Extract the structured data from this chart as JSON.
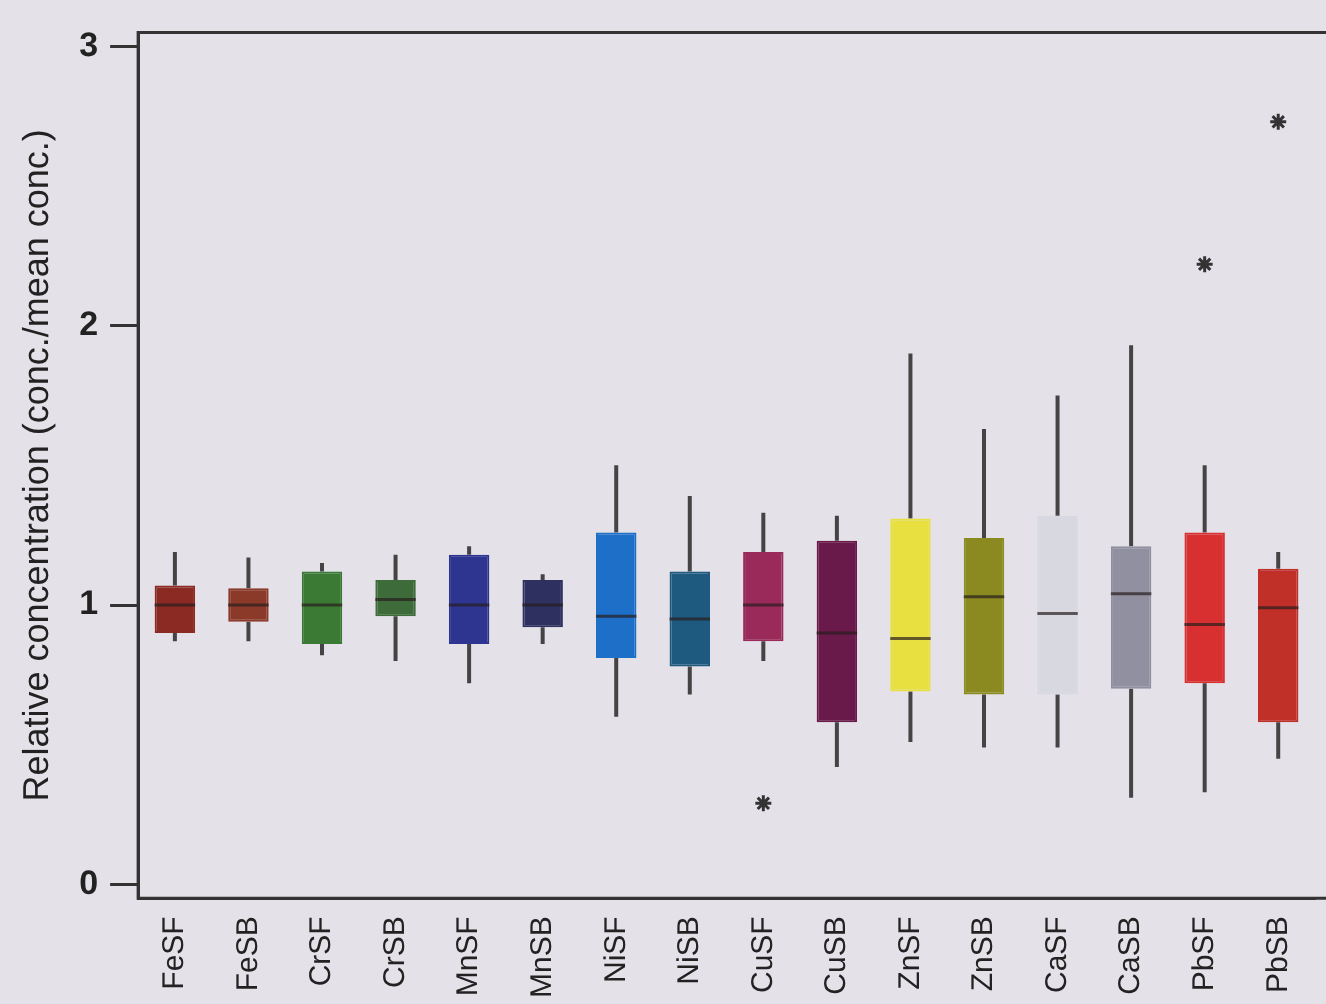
{
  "chart_data": {
    "type": "box",
    "ylabel": "Relative concentration (conc./mean conc.)",
    "categories": [
      "FeSF",
      "FeSB",
      "CrSF",
      "CrSB",
      "MnSF",
      "MnSB",
      "NiSF",
      "NiSB",
      "CuSF",
      "CuSB",
      "ZnSF",
      "ZnSB",
      "CaSF",
      "CaSB",
      "PbSF",
      "PbSB"
    ],
    "colors": [
      "#8b2a22",
      "#8b3a2a",
      "#3a7a35",
      "#3d6b3a",
      "#2e3590",
      "#2e3060",
      "#1e6fc8",
      "#1e5a80",
      "#9a2a5a",
      "#6a1a4a",
      "#e8e040",
      "#8a8a20",
      "#d8d8e0",
      "#9090a0",
      "#d83030",
      "#c03028"
    ],
    "boxes": [
      {
        "low": 0.87,
        "q1": 0.9,
        "median": 1.0,
        "q3": 1.07,
        "high": 1.19
      },
      {
        "low": 0.87,
        "q1": 0.94,
        "median": 1.0,
        "q3": 1.06,
        "high": 1.17
      },
      {
        "low": 0.82,
        "q1": 0.86,
        "median": 1.0,
        "q3": 1.12,
        "high": 1.15
      },
      {
        "low": 0.8,
        "q1": 0.96,
        "median": 1.02,
        "q3": 1.09,
        "high": 1.18
      },
      {
        "low": 0.72,
        "q1": 0.86,
        "median": 1.0,
        "q3": 1.18,
        "high": 1.21
      },
      {
        "low": 0.86,
        "q1": 0.92,
        "median": 1.0,
        "q3": 1.09,
        "high": 1.11
      },
      {
        "low": 0.6,
        "q1": 0.81,
        "median": 0.96,
        "q3": 1.26,
        "high": 1.5
      },
      {
        "low": 0.68,
        "q1": 0.78,
        "median": 0.95,
        "q3": 1.12,
        "high": 1.39
      },
      {
        "low": 0.8,
        "q1": 0.87,
        "median": 1.0,
        "q3": 1.19,
        "high": 1.33,
        "outliers": [
          0.29
        ]
      },
      {
        "low": 0.42,
        "q1": 0.58,
        "median": 0.9,
        "q3": 1.23,
        "high": 1.32
      },
      {
        "low": 0.51,
        "q1": 0.69,
        "median": 0.88,
        "q3": 1.31,
        "high": 1.9
      },
      {
        "low": 0.49,
        "q1": 0.68,
        "median": 1.03,
        "q3": 1.24,
        "high": 1.63
      },
      {
        "low": 0.49,
        "q1": 0.68,
        "median": 0.97,
        "q3": 1.32,
        "high": 1.75
      },
      {
        "low": 0.31,
        "q1": 0.7,
        "median": 1.04,
        "q3": 1.21,
        "high": 1.93
      },
      {
        "low": 0.33,
        "q1": 0.72,
        "median": 0.93,
        "q3": 1.26,
        "high": 1.5,
        "outliers": [
          2.22
        ]
      },
      {
        "low": 0.45,
        "q1": 0.58,
        "median": 0.99,
        "q3": 1.13,
        "high": 1.19,
        "outliers": [
          2.73
        ]
      }
    ],
    "ylim": [
      -0.05,
      3.05
    ],
    "yticks": [
      0,
      1,
      2,
      3
    ],
    "grid": false,
    "legend": false,
    "marker": "star"
  }
}
